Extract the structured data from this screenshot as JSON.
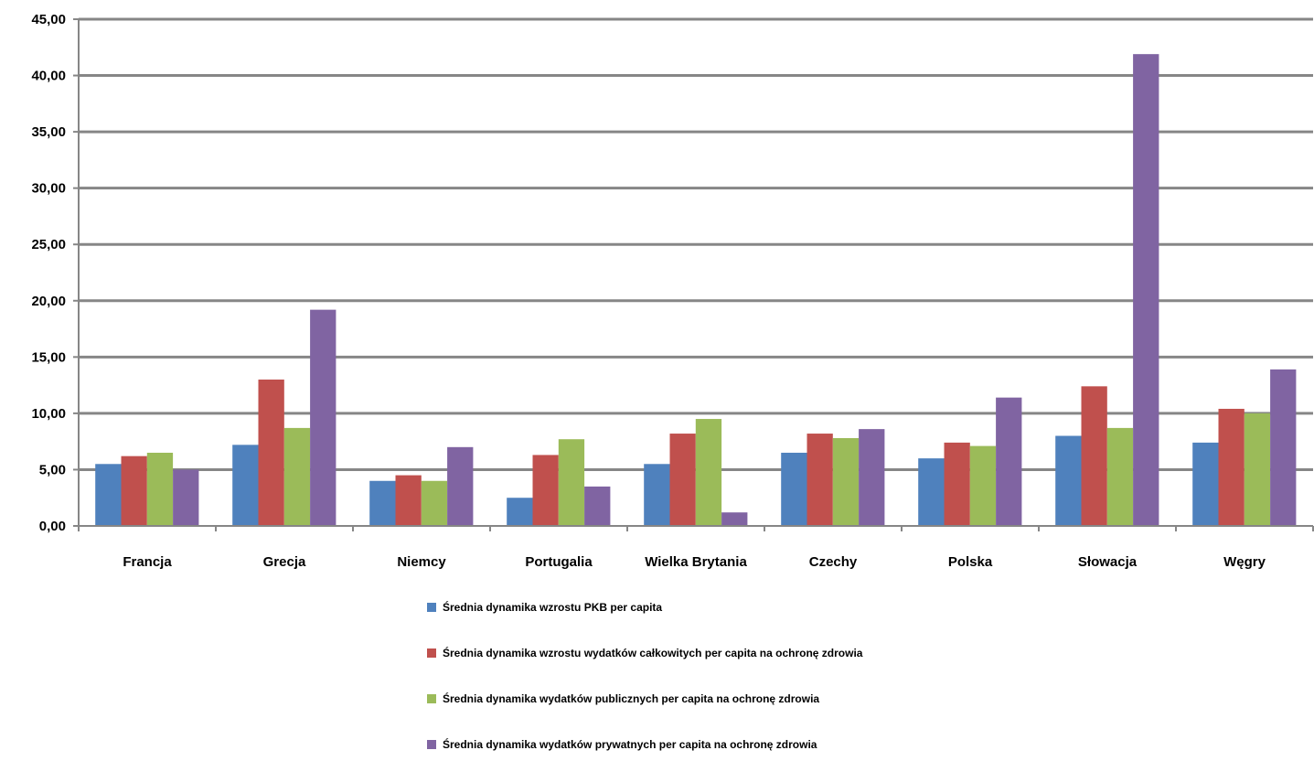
{
  "chart_data": {
    "type": "bar",
    "categories": [
      "Francja",
      "Grecja",
      "Niemcy",
      "Portugalia",
      "Wielka Brytania",
      "Czechy",
      "Polska",
      "Słowacja",
      "Węgry"
    ],
    "series": [
      {
        "name": "Średnia dynamika wzrostu PKB per capita",
        "color": "#4f81bd",
        "values": [
          5.5,
          7.2,
          4.0,
          2.5,
          5.5,
          6.5,
          6.0,
          8.0,
          7.4
        ]
      },
      {
        "name": "Średnia dynamika wzrostu wydatków całkowitych per capita na ochronę zdrowia",
        "color": "#c0504d",
        "values": [
          6.2,
          13.0,
          4.5,
          6.3,
          8.2,
          8.2,
          7.4,
          12.4,
          10.4
        ]
      },
      {
        "name": "Średnia dynamika wydatków publicznych per capita na ochronę zdrowia",
        "color": "#9bbb59",
        "values": [
          6.5,
          8.7,
          4.0,
          7.7,
          9.5,
          7.8,
          7.1,
          8.7,
          10.0
        ]
      },
      {
        "name": "Średnia dynamika wydatków prywatnych per capita na ochronę zdrowia",
        "color": "#8064a2",
        "values": [
          5.0,
          19.2,
          7.0,
          3.5,
          1.2,
          8.6,
          11.4,
          41.9,
          13.9
        ]
      }
    ],
    "ylim": [
      0,
      45
    ],
    "yticks": [
      "0,00",
      "5,00",
      "10,00",
      "15,00",
      "20,00",
      "25,00",
      "30,00",
      "35,00",
      "40,00",
      "45,00"
    ],
    "ytick_values": [
      0,
      5,
      10,
      15,
      20,
      25,
      30,
      35,
      40,
      45
    ],
    "grid": true,
    "gridline_color": "#868686",
    "legend_position": "bottom"
  }
}
